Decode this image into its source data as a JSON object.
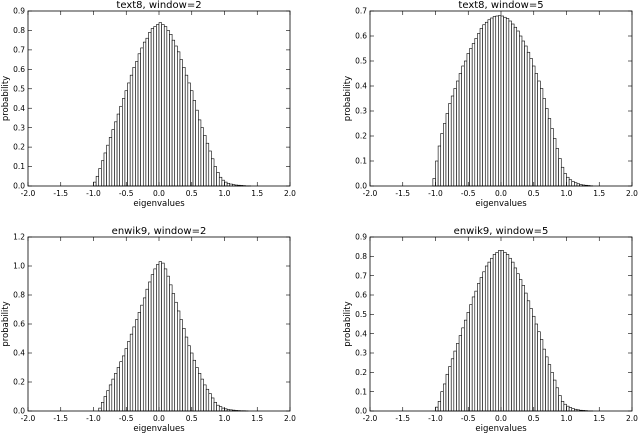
{
  "chart_data": [
    {
      "type": "bar",
      "title": "text8, window=2",
      "xlabel": "eigenvalues",
      "ylabel": "probability",
      "xlim": [
        -2.0,
        2.0
      ],
      "ylim": [
        0,
        0.9
      ],
      "xticks": [
        "-2.0",
        "-1.5",
        "-1.0",
        "-0.5",
        "0.0",
        "0.5",
        "1.0",
        "1.5",
        "2.0"
      ],
      "yticks": [
        "0.0",
        "0.1",
        "0.2",
        "0.3",
        "0.4",
        "0.5",
        "0.6",
        "0.7",
        "0.8",
        "0.9"
      ],
      "grid": false,
      "bin_width": 0.04,
      "x": [
        -1.0,
        -0.96,
        -0.92,
        -0.88,
        -0.84,
        -0.8,
        -0.76,
        -0.72,
        -0.68,
        -0.64,
        -0.6,
        -0.56,
        -0.52,
        -0.48,
        -0.44,
        -0.4,
        -0.36,
        -0.32,
        -0.28,
        -0.24,
        -0.2,
        -0.16,
        -0.12,
        -0.08,
        -0.04,
        0.0,
        0.04,
        0.08,
        0.12,
        0.16,
        0.2,
        0.24,
        0.28,
        0.32,
        0.36,
        0.4,
        0.44,
        0.48,
        0.52,
        0.56,
        0.6,
        0.64,
        0.68,
        0.72,
        0.76,
        0.8,
        0.84,
        0.88,
        0.92,
        0.96,
        1.0,
        1.04,
        1.08,
        1.12,
        1.16,
        1.2,
        1.24,
        1.28,
        1.32,
        1.36
      ],
      "values": [
        0.02,
        0.05,
        0.09,
        0.13,
        0.17,
        0.21,
        0.25,
        0.29,
        0.33,
        0.37,
        0.41,
        0.45,
        0.49,
        0.53,
        0.57,
        0.61,
        0.64,
        0.68,
        0.71,
        0.74,
        0.76,
        0.79,
        0.81,
        0.82,
        0.83,
        0.84,
        0.83,
        0.82,
        0.8,
        0.78,
        0.75,
        0.72,
        0.69,
        0.65,
        0.61,
        0.57,
        0.53,
        0.49,
        0.44,
        0.39,
        0.34,
        0.3,
        0.26,
        0.22,
        0.18,
        0.14,
        0.1,
        0.07,
        0.045,
        0.03,
        0.02,
        0.014,
        0.01,
        0.007,
        0.005,
        0.004,
        0.003,
        0.002,
        0.001,
        0.001
      ]
    },
    {
      "type": "bar",
      "title": "text8, window=5",
      "xlabel": "eigenvalues",
      "ylabel": "probability",
      "xlim": [
        -2.0,
        2.0
      ],
      "ylim": [
        0,
        0.7
      ],
      "xticks": [
        "-2.0",
        "-1.5",
        "-1.0",
        "-0.5",
        "0.0",
        "0.5",
        "1.0",
        "1.5",
        "2.0"
      ],
      "yticks": [
        "0.0",
        "0.1",
        "0.2",
        "0.3",
        "0.4",
        "0.5",
        "0.6",
        "0.7"
      ],
      "grid": false,
      "bin_width": 0.04,
      "x": [
        -1.04,
        -1.0,
        -0.96,
        -0.92,
        -0.88,
        -0.84,
        -0.8,
        -0.76,
        -0.72,
        -0.68,
        -0.64,
        -0.6,
        -0.56,
        -0.52,
        -0.48,
        -0.44,
        -0.4,
        -0.36,
        -0.32,
        -0.28,
        -0.24,
        -0.2,
        -0.16,
        -0.12,
        -0.08,
        -0.04,
        0.0,
        0.04,
        0.08,
        0.12,
        0.16,
        0.2,
        0.24,
        0.28,
        0.32,
        0.36,
        0.4,
        0.44,
        0.48,
        0.52,
        0.56,
        0.6,
        0.64,
        0.68,
        0.72,
        0.76,
        0.8,
        0.84,
        0.88,
        0.92,
        0.96,
        1.0,
        1.04,
        1.08,
        1.12,
        1.16,
        1.2,
        1.24,
        1.28,
        1.32,
        1.36
      ],
      "values": [
        0.03,
        0.1,
        0.16,
        0.21,
        0.25,
        0.29,
        0.33,
        0.36,
        0.39,
        0.42,
        0.45,
        0.48,
        0.5,
        0.53,
        0.55,
        0.57,
        0.59,
        0.61,
        0.63,
        0.645,
        0.655,
        0.665,
        0.672,
        0.678,
        0.68,
        0.682,
        0.68,
        0.675,
        0.67,
        0.66,
        0.648,
        0.635,
        0.62,
        0.6,
        0.58,
        0.56,
        0.535,
        0.51,
        0.48,
        0.45,
        0.42,
        0.39,
        0.35,
        0.31,
        0.27,
        0.23,
        0.19,
        0.15,
        0.11,
        0.075,
        0.05,
        0.035,
        0.025,
        0.018,
        0.013,
        0.009,
        0.006,
        0.004,
        0.003,
        0.002,
        0.001
      ]
    },
    {
      "type": "bar",
      "title": "enwik9, window=2",
      "xlabel": "eigenvalues",
      "ylabel": "probability",
      "xlim": [
        -2.0,
        2.0
      ],
      "ylim": [
        0,
        1.2
      ],
      "xticks": [
        "-2.0",
        "-1.5",
        "-1.0",
        "-0.5",
        "0.0",
        "0.5",
        "1.0",
        "1.5",
        "2.0"
      ],
      "yticks": [
        "0.0",
        "0.2",
        "0.4",
        "0.6",
        "0.8",
        "1.0",
        "1.2"
      ],
      "grid": false,
      "bin_width": 0.04,
      "x": [
        -0.92,
        -0.88,
        -0.84,
        -0.8,
        -0.76,
        -0.72,
        -0.68,
        -0.64,
        -0.6,
        -0.56,
        -0.52,
        -0.48,
        -0.44,
        -0.4,
        -0.36,
        -0.32,
        -0.28,
        -0.24,
        -0.2,
        -0.16,
        -0.12,
        -0.08,
        -0.04,
        0.0,
        0.04,
        0.08,
        0.12,
        0.16,
        0.2,
        0.24,
        0.28,
        0.32,
        0.36,
        0.4,
        0.44,
        0.48,
        0.52,
        0.56,
        0.6,
        0.64,
        0.68,
        0.72,
        0.76,
        0.8,
        0.84,
        0.88,
        0.92,
        0.96,
        1.0,
        1.04,
        1.08,
        1.12,
        1.16,
        1.2,
        1.24,
        1.28,
        1.32
      ],
      "values": [
        0.02,
        0.06,
        0.1,
        0.14,
        0.18,
        0.22,
        0.26,
        0.3,
        0.34,
        0.38,
        0.43,
        0.48,
        0.53,
        0.58,
        0.63,
        0.68,
        0.73,
        0.78,
        0.84,
        0.89,
        0.94,
        0.98,
        1.01,
        1.03,
        1.02,
        0.98,
        0.93,
        0.87,
        0.81,
        0.75,
        0.69,
        0.63,
        0.57,
        0.51,
        0.45,
        0.4,
        0.35,
        0.3,
        0.26,
        0.22,
        0.18,
        0.15,
        0.12,
        0.09,
        0.06,
        0.04,
        0.03,
        0.02,
        0.015,
        0.01,
        0.008,
        0.006,
        0.004,
        0.003,
        0.002,
        0.002,
        0.001
      ]
    },
    {
      "type": "bar",
      "title": "enwik9, window=5",
      "xlabel": "eigenvalues",
      "ylabel": "probability",
      "xlim": [
        -2.0,
        2.0
      ],
      "ylim": [
        0,
        0.9
      ],
      "xticks": [
        "-2.0",
        "-1.5",
        "-1.0",
        "-0.5",
        "0.0",
        "0.5",
        "1.0",
        "1.5",
        "2.0"
      ],
      "yticks": [
        "0.0",
        "0.1",
        "0.2",
        "0.3",
        "0.4",
        "0.5",
        "0.6",
        "0.7",
        "0.8",
        "0.9"
      ],
      "grid": false,
      "bin_width": 0.04,
      "x": [
        -1.0,
        -0.96,
        -0.92,
        -0.88,
        -0.84,
        -0.8,
        -0.76,
        -0.72,
        -0.68,
        -0.64,
        -0.6,
        -0.56,
        -0.52,
        -0.48,
        -0.44,
        -0.4,
        -0.36,
        -0.32,
        -0.28,
        -0.24,
        -0.2,
        -0.16,
        -0.12,
        -0.08,
        -0.04,
        0.0,
        0.04,
        0.08,
        0.12,
        0.16,
        0.2,
        0.24,
        0.28,
        0.32,
        0.36,
        0.4,
        0.44,
        0.48,
        0.52,
        0.56,
        0.6,
        0.64,
        0.68,
        0.72,
        0.76,
        0.8,
        0.84,
        0.88,
        0.92,
        0.96,
        1.0,
        1.04,
        1.08,
        1.12,
        1.16,
        1.2,
        1.24,
        1.28,
        1.32,
        1.36
      ],
      "values": [
        0.02,
        0.05,
        0.1,
        0.14,
        0.19,
        0.23,
        0.27,
        0.31,
        0.35,
        0.39,
        0.43,
        0.47,
        0.51,
        0.55,
        0.59,
        0.62,
        0.66,
        0.69,
        0.72,
        0.75,
        0.77,
        0.79,
        0.81,
        0.82,
        0.83,
        0.83,
        0.82,
        0.81,
        0.79,
        0.77,
        0.74,
        0.71,
        0.68,
        0.65,
        0.61,
        0.57,
        0.53,
        0.49,
        0.45,
        0.41,
        0.37,
        0.32,
        0.28,
        0.24,
        0.2,
        0.16,
        0.12,
        0.08,
        0.05,
        0.035,
        0.025,
        0.018,
        0.013,
        0.009,
        0.006,
        0.004,
        0.003,
        0.002,
        0.001,
        0.001
      ]
    }
  ]
}
